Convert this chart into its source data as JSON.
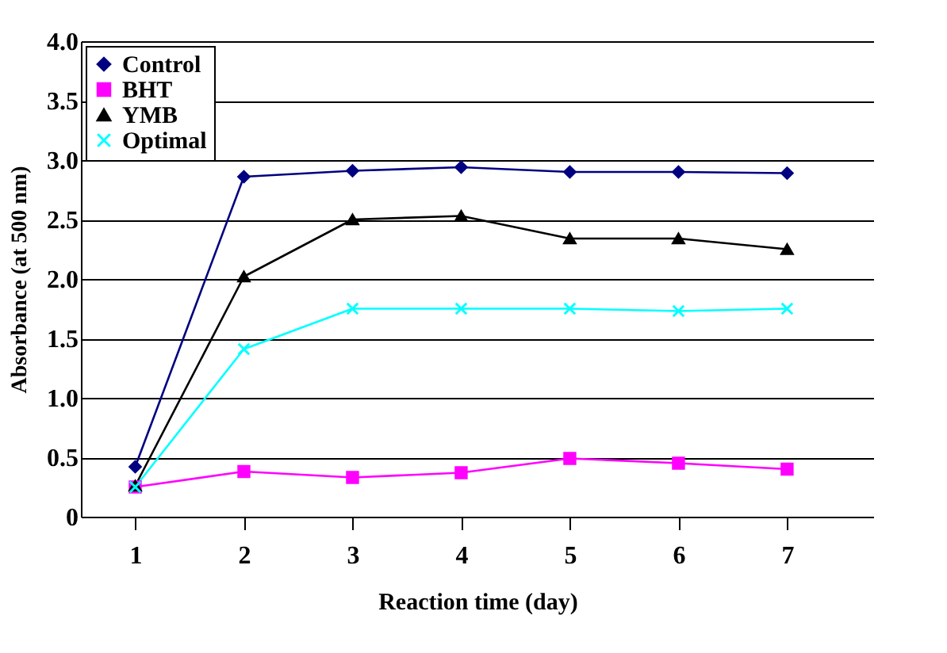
{
  "chart_data": {
    "type": "line",
    "xlabel": "Reaction time (day)",
    "ylabel": "Absorbance (at 500 nm)",
    "categories": [
      "1",
      "2",
      "3",
      "4",
      "5",
      "6",
      "7"
    ],
    "ylim": [
      0,
      4.0
    ],
    "yticks": [
      {
        "value": 0,
        "label": "0"
      },
      {
        "value": 0.5,
        "label": "0.5"
      },
      {
        "value": 1.0,
        "label": "1.0"
      },
      {
        "value": 1.5,
        "label": "1.5"
      },
      {
        "value": 2.0,
        "label": "2.0"
      },
      {
        "value": 2.5,
        "label": "2.5"
      },
      {
        "value": 3.0,
        "label": "3.0"
      },
      {
        "value": 3.5,
        "label": "3.5"
      },
      {
        "value": 4.0,
        "label": "4.0"
      }
    ],
    "grid": "y",
    "legend": "top left",
    "series": [
      {
        "name": "Control",
        "color": "#000080",
        "marker": "diamond",
        "values": [
          0.42,
          2.86,
          2.91,
          2.94,
          2.9,
          2.9,
          2.89
        ]
      },
      {
        "name": "BHT",
        "color": "#ff00ff",
        "marker": "square",
        "values": [
          0.25,
          0.38,
          0.33,
          0.37,
          0.49,
          0.45,
          0.4
        ]
      },
      {
        "name": "YMB",
        "color": "#000000",
        "marker": "triangle",
        "values": [
          0.26,
          2.02,
          2.5,
          2.53,
          2.34,
          2.34,
          2.25
        ]
      },
      {
        "name": "Optimal",
        "color": "#00ffff",
        "marker": "cross",
        "values": [
          0.25,
          1.41,
          1.75,
          1.75,
          1.75,
          1.73,
          1.75
        ]
      }
    ]
  }
}
